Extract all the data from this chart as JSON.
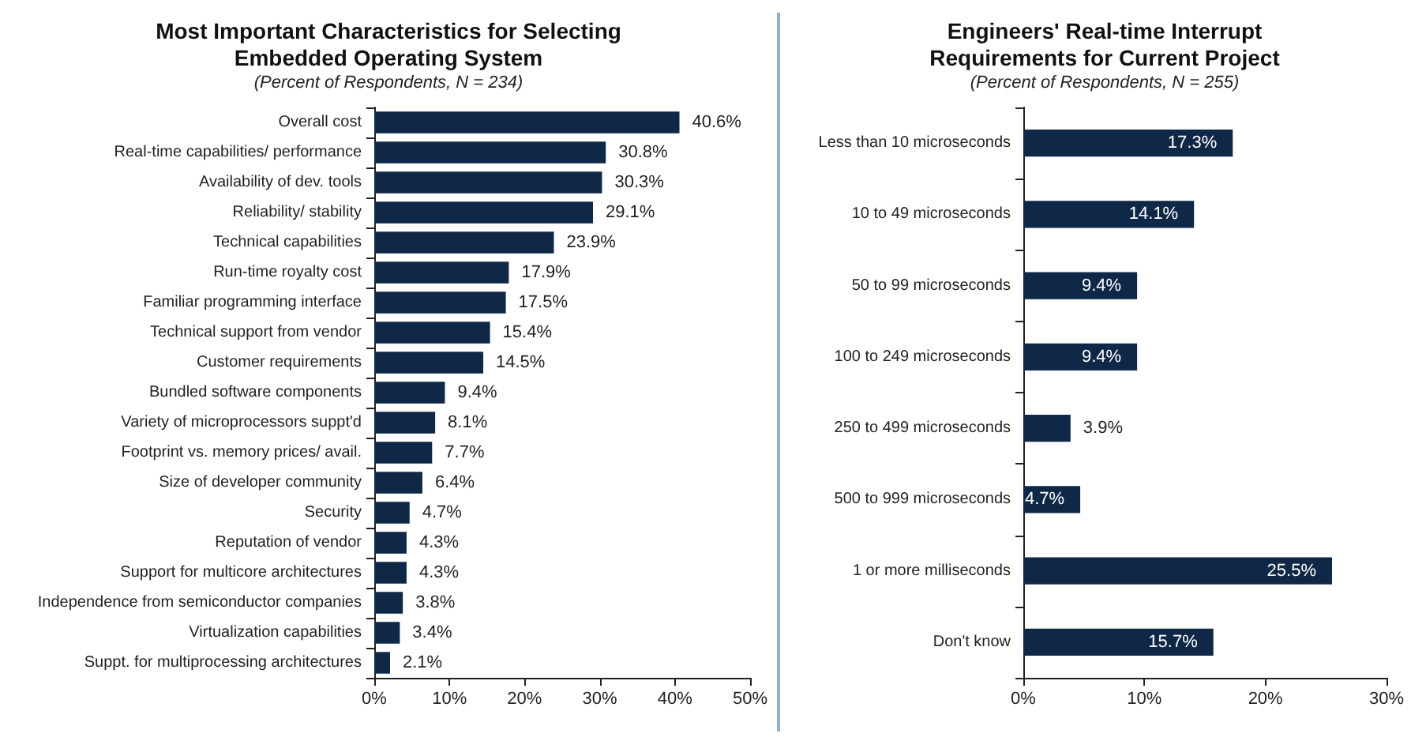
{
  "chart_data": [
    {
      "type": "bar",
      "orientation": "horizontal",
      "title": "Most Important Characteristics for Selecting\nEmbedded Operating System",
      "subtitle": "(Percent of Respondents, N = 234)",
      "categories": [
        "Overall cost",
        "Real-time capabilities/ performance",
        "Availability of dev. tools",
        "Reliability/ stability",
        "Technical capabilities",
        "Run-time royalty cost",
        "Familiar programming interface",
        "Technical support from vendor",
        "Customer requirements",
        "Bundled software components",
        "Variety of microprocessors suppt'd",
        "Footprint vs. memory prices/ avail.",
        "Size of developer community",
        "Security",
        "Reputation of vendor",
        "Support for multicore architectures",
        "Independence from semiconductor companies",
        "Virtualization capabilities",
        "Suppt. for multiprocessing architectures"
      ],
      "values": [
        40.6,
        30.8,
        30.3,
        29.1,
        23.9,
        17.9,
        17.5,
        15.4,
        14.5,
        9.4,
        8.1,
        7.7,
        6.4,
        4.7,
        4.3,
        4.3,
        3.8,
        3.4,
        2.1
      ],
      "value_labels": [
        "40.6%",
        "30.8%",
        "30.3%",
        "29.1%",
        "23.9%",
        "17.9%",
        "17.5%",
        "15.4%",
        "14.5%",
        "9.4%",
        "8.1%",
        "7.7%",
        "6.4%",
        "4.7%",
        "4.3%",
        "4.3%",
        "3.8%",
        "3.4%",
        "2.1%"
      ],
      "color": "#0f2847",
      "xlim": [
        0,
        50
      ],
      "xticks": [
        {
          "value": 0,
          "label": "0%"
        },
        {
          "value": 10,
          "label": "10%"
        },
        {
          "value": 20,
          "label": "20%"
        },
        {
          "value": 30,
          "label": "30%"
        },
        {
          "value": 40,
          "label": "40%"
        },
        {
          "value": 50,
          "label": "50%"
        }
      ]
    },
    {
      "type": "bar",
      "orientation": "horizontal",
      "title": "Engineers' Real-time Interrupt\nRequirements for Current Project",
      "subtitle": "(Percent of Respondents, N = 255)",
      "categories": [
        "Less than 10 microseconds",
        "10 to 49 microseconds",
        "50 to 99 microseconds",
        "100 to 249 microseconds",
        "250 to 499 microseconds",
        "500 to 999 microseconds",
        "1 or more milliseconds",
        "Don't know"
      ],
      "values": [
        17.3,
        14.1,
        9.4,
        9.4,
        3.9,
        4.7,
        25.5,
        15.7
      ],
      "value_labels": [
        "17.3%",
        "14.1%",
        "9.4%",
        "9.4%",
        "3.9%",
        "4.7%",
        "25.5%",
        "15.7%"
      ],
      "color": "#0f2847",
      "xlim": [
        0,
        30
      ],
      "xticks": [
        {
          "value": 0,
          "label": "0%"
        },
        {
          "value": 10,
          "label": "10%"
        },
        {
          "value": 20,
          "label": "20%"
        },
        {
          "value": 30,
          "label": "30%"
        }
      ]
    }
  ]
}
